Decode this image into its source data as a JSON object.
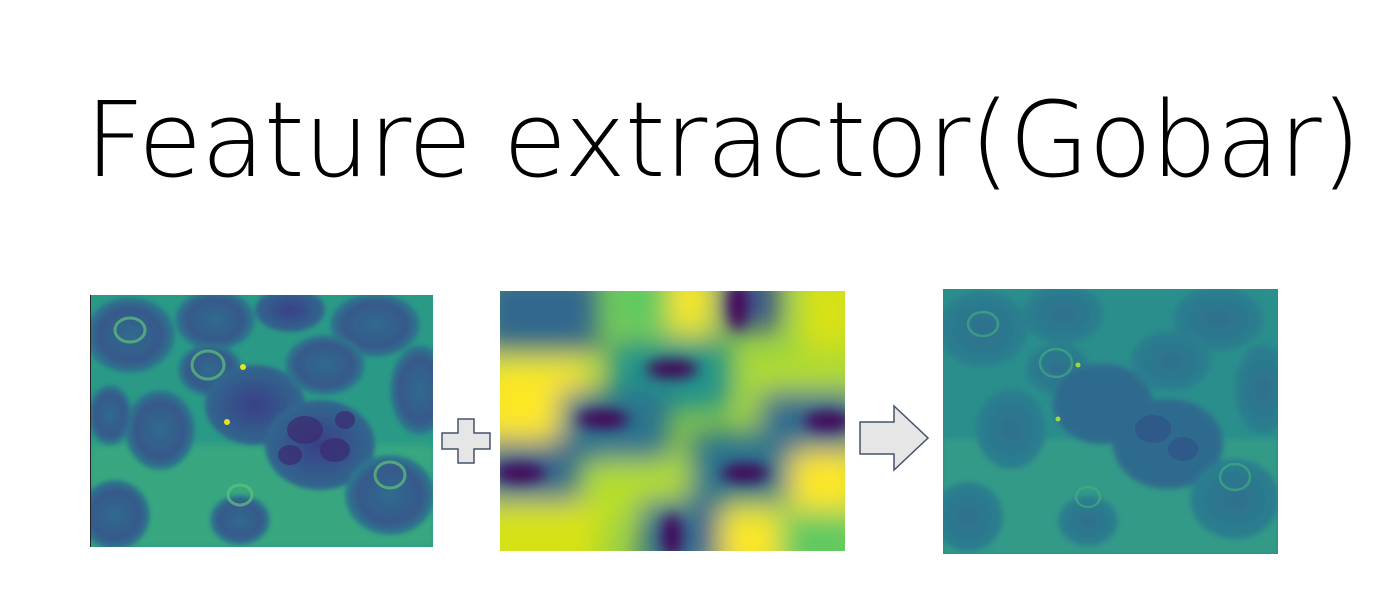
{
  "slide": {
    "title": "Feature extractor(Gobar)"
  },
  "panels": [
    {
      "id": "input",
      "content": "cell micrograph (input)",
      "colormap": "viridis"
    },
    {
      "id": "filter",
      "content": "gabor kernel",
      "colormap": "viridis"
    },
    {
      "id": "output",
      "content": "filtered micrograph (output)",
      "colormap": "viridis"
    }
  ],
  "operators": {
    "plus": "plus-icon",
    "arrow": "right-arrow-icon"
  },
  "colors": {
    "viridis_dark": "#440154",
    "viridis_blue": "#3b528b",
    "viridis_teal": "#21918c",
    "viridis_green": "#5ec962",
    "viridis_yellow": "#fde725",
    "operator_fill": "#e6e6e6",
    "operator_stroke": "#44546a"
  }
}
